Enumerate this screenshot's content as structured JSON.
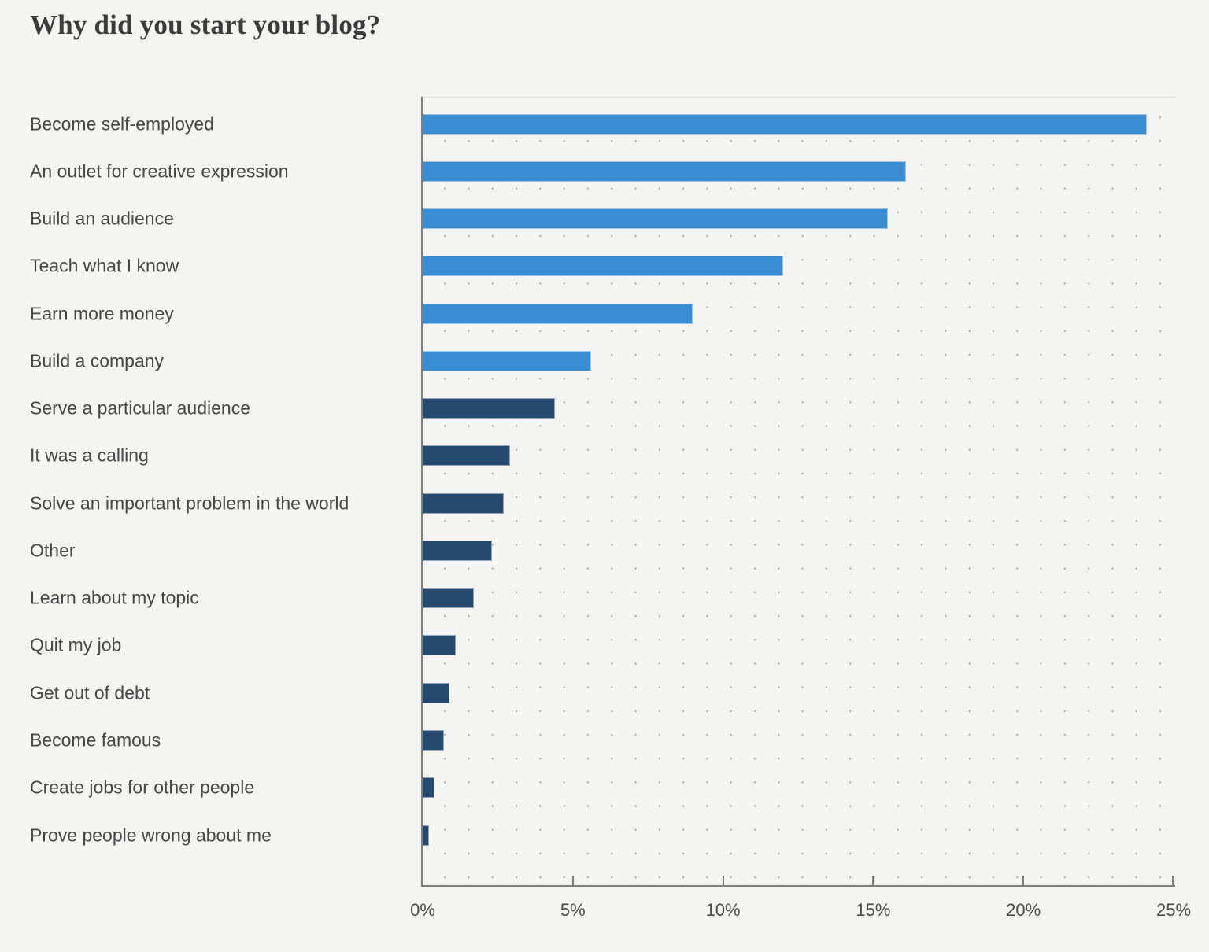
{
  "title": "Why did you start your blog?",
  "colors": {
    "highlight_bar": "#3a8dd1",
    "default_bar": "#264970",
    "axis": "#7d7d7d",
    "background": "#f4f4f3"
  },
  "chart_data": {
    "type": "bar",
    "orientation": "horizontal",
    "title": "Why did you start your blog?",
    "categories": [
      "Become self-employed",
      "An outlet for creative expression",
      "Build an audience",
      "Teach what I know",
      "Earn more money",
      "Build a company",
      "Serve a particular audience",
      "It was a calling",
      "Solve an important problem in the world",
      "Other",
      "Learn about my topic",
      "Quit my job",
      "Get out of debt",
      "Become famous",
      "Create jobs for other people",
      "Prove people wrong about me"
    ],
    "values": [
      24.1,
      16.1,
      15.5,
      12.0,
      9.0,
      5.6,
      4.4,
      2.9,
      2.7,
      2.3,
      1.7,
      1.1,
      0.9,
      0.7,
      0.4,
      0.2
    ],
    "unit": "%",
    "xlim": [
      0,
      25
    ],
    "x_tick_values": [
      0,
      5,
      10,
      15,
      20,
      25
    ],
    "x_tick_labels": [
      "0%",
      "5%",
      "10%",
      "15%",
      "20%",
      "25%"
    ],
    "grid": "dotted",
    "legend": "none",
    "highlight_count": 6,
    "highlight_color": "#3a8dd1",
    "default_color": "#264970"
  }
}
